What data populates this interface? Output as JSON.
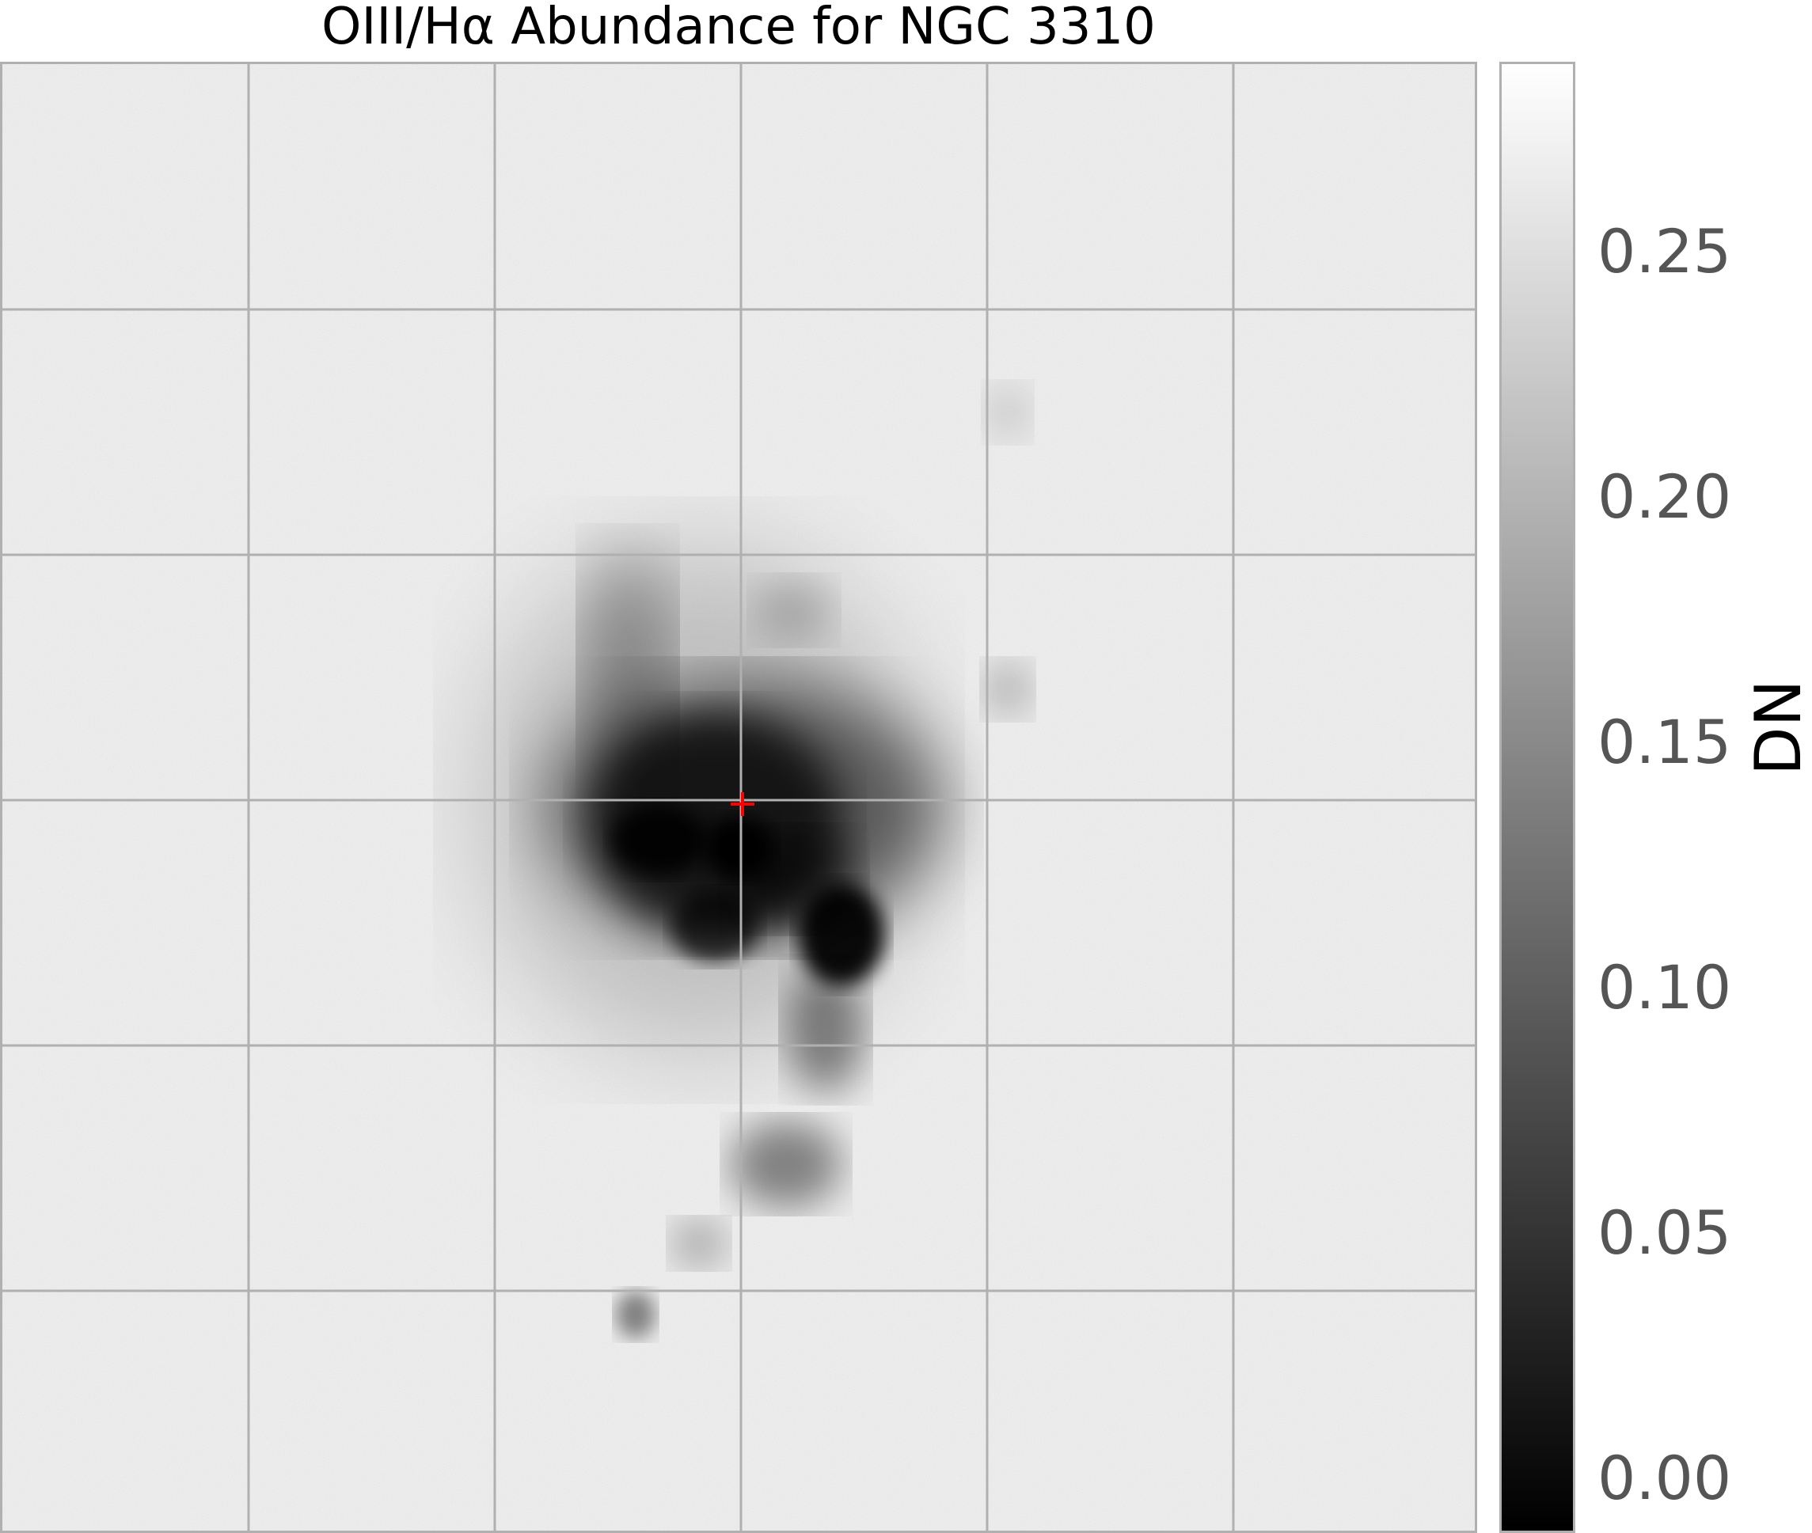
{
  "title": "OIII/Hα Abundance for NGC 3310",
  "colorbar": {
    "label": "DN",
    "ticks": [
      "0.00",
      "0.05",
      "0.10",
      "0.15",
      "0.20",
      "0.25"
    ],
    "min": 0.0,
    "max": 0.28,
    "colormap": "gray"
  },
  "image": {
    "subject": "galaxy",
    "grid": true,
    "grid_color": "#b0b0b0",
    "center_marker_color": "#ff0000"
  }
}
